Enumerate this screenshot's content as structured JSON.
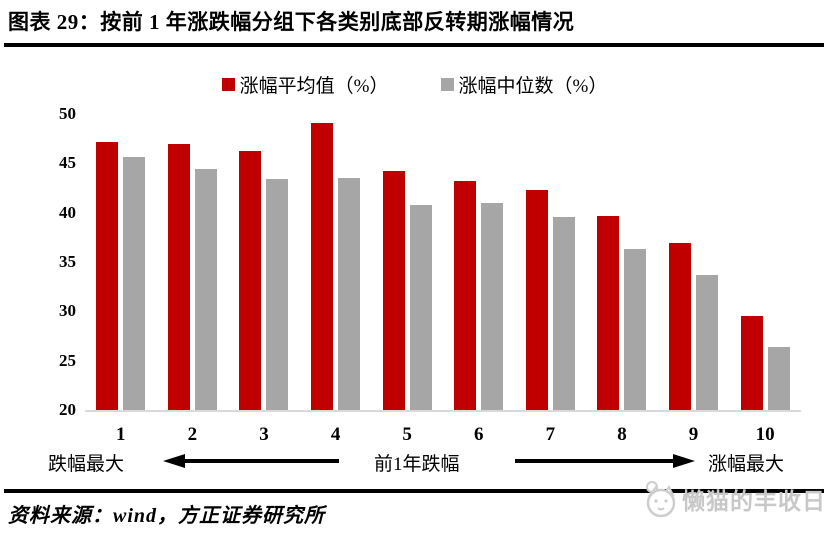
{
  "title": "图表 29：按前 1 年涨跌幅分组下各类别底部反转期涨幅情况",
  "source_note": "资料来源：wind，方正证券研究所",
  "watermark": {
    "text": "懒猫的丰收日",
    "icon": "cat-face-icon",
    "color": "#c8c8c8"
  },
  "axis_annotation": {
    "left_label": "跌幅最大",
    "center_label": "前1年跌幅",
    "right_label": "涨幅最大",
    "left_arrow": "arrow-pointing-left",
    "right_arrow": "arrow-pointing-right"
  },
  "chart_data": {
    "type": "bar",
    "title": "",
    "xlabel": "前1年跌幅",
    "ylabel": "",
    "categories": [
      "1",
      "2",
      "3",
      "4",
      "5",
      "6",
      "7",
      "8",
      "9",
      "10"
    ],
    "series": [
      {
        "name": "涨幅平均值（%）",
        "color": "#c00000",
        "values": [
          47.2,
          47.0,
          46.3,
          49.1,
          44.2,
          43.2,
          42.3,
          39.7,
          36.9,
          29.5
        ]
      },
      {
        "name": "涨幅中位数（%）",
        "color": "#a6a6a6",
        "values": [
          45.6,
          44.4,
          43.4,
          43.5,
          40.8,
          41.0,
          39.6,
          36.3,
          33.7,
          26.4
        ]
      }
    ],
    "ylim": [
      20,
      50
    ],
    "yticks": [
      20,
      25,
      30,
      35,
      40,
      45,
      50
    ],
    "grid": false,
    "legend_position": "top"
  }
}
